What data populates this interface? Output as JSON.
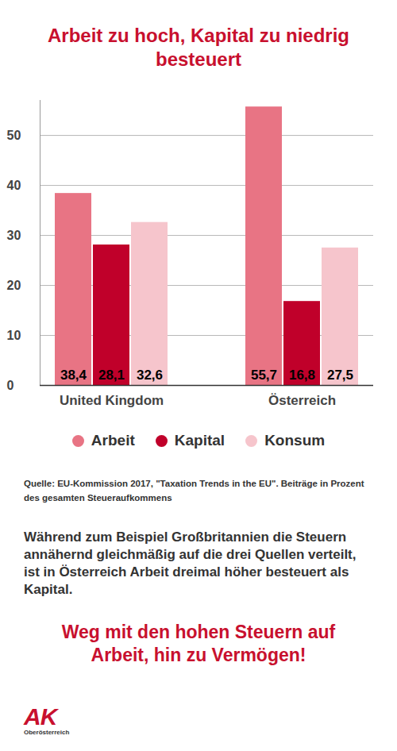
{
  "chart_data": {
    "type": "bar",
    "title": "Arbeit zu hoch, Kapital zu niedrig besteuert",
    "categories": [
      "United Kingdom",
      "Österreich"
    ],
    "series": [
      {
        "name": "Arbeit",
        "color": "#e87484",
        "values": [
          38.4,
          55.7
        ],
        "value_labels": [
          "38,4",
          "55,7"
        ]
      },
      {
        "name": "Kapital",
        "color": "#c0002a",
        "values": [
          28.1,
          16.8
        ],
        "value_labels": [
          "28,1",
          "16,8"
        ]
      },
      {
        "name": "Konsum",
        "color": "#f6c5cc",
        "values": [
          32.6,
          27.5
        ],
        "value_labels": [
          "32,6",
          "27,5"
        ]
      }
    ],
    "ylim": [
      0,
      57
    ],
    "yticks": [
      0,
      10,
      20,
      30,
      40,
      50
    ],
    "grid": true,
    "data_labels": true,
    "legend": "bottom",
    "source": "Quelle: EU-Kommission 2017, \"Taxation Trends in the EU\". Beiträge in Prozent des gesamten Steueraufkommens",
    "text": "Während zum Beispiel Großbritannien die Steuern annähernd gleichmäßig auf die drei Quellen verteilt, ist in Österreich Arbeit dreimal höher besteuert als Kapital.",
    "call_to_action": "Weg mit den hohen Steuern auf Arbeit, hin zu Vermögen!",
    "logo": {
      "text": "AK",
      "subtext": "Oberösterreich"
    }
  }
}
